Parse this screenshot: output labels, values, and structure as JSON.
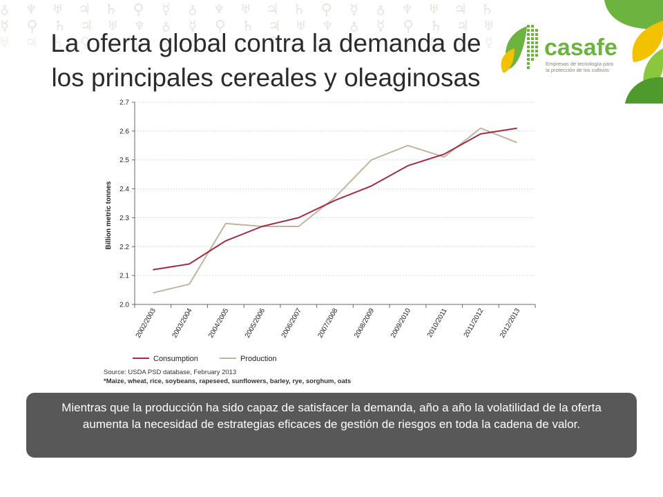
{
  "slide": {
    "title_line1": "La oferta global contra la demanda de",
    "title_line2": "los principales cereales y oleaginosas",
    "caption": "Mientras que la producción ha sido capaz de satisfacer la demanda, año a año la volatilidad de la oferta aumenta la necesidad de estrategias eficaces de gestión de riesgos en toda la cadena de valor."
  },
  "logo": {
    "name": "casafe",
    "tagline_line1": "Empresas de tecnología para",
    "tagline_line2": "la protección de los cultivos",
    "icon": "leaf-logo-icon",
    "colors": {
      "green": "#6cb33f",
      "yellow": "#f2c100",
      "tagline": "#7a8a6e"
    }
  },
  "chart_data": {
    "type": "line",
    "title": "",
    "xlabel": "",
    "ylabel": "Billion metric tonnes",
    "ylim": [
      2.0,
      2.7
    ],
    "yticks": [
      "2.0",
      "2.1",
      "2.2",
      "2.3",
      "2.4",
      "2.5",
      "2.6",
      "2.7"
    ],
    "grid": true,
    "legend": "bottom-left",
    "categories": [
      "2002/2003",
      "2003/2004",
      "2004/2005",
      "2005/2006",
      "2006/2007",
      "2007/2008",
      "2008/2009",
      "2009/2010",
      "2010/2011",
      "2011/2012",
      "2012/2013"
    ],
    "series": [
      {
        "name": "Consumption",
        "color": "#a32a45",
        "values": [
          2.12,
          2.14,
          2.22,
          2.27,
          2.3,
          2.36,
          2.41,
          2.48,
          2.52,
          2.59,
          2.61
        ]
      },
      {
        "name": "Production",
        "color": "#c2b49a",
        "values": [
          2.04,
          2.07,
          2.28,
          2.27,
          2.27,
          2.37,
          2.5,
          2.55,
          2.51,
          2.61,
          2.56
        ]
      }
    ],
    "source": "Source: USDA PSD database, February 2013",
    "footnote": "*Maize, wheat, rice, soybeans, rapeseed, sunflowers, barley, rye, sorghum, oats"
  }
}
